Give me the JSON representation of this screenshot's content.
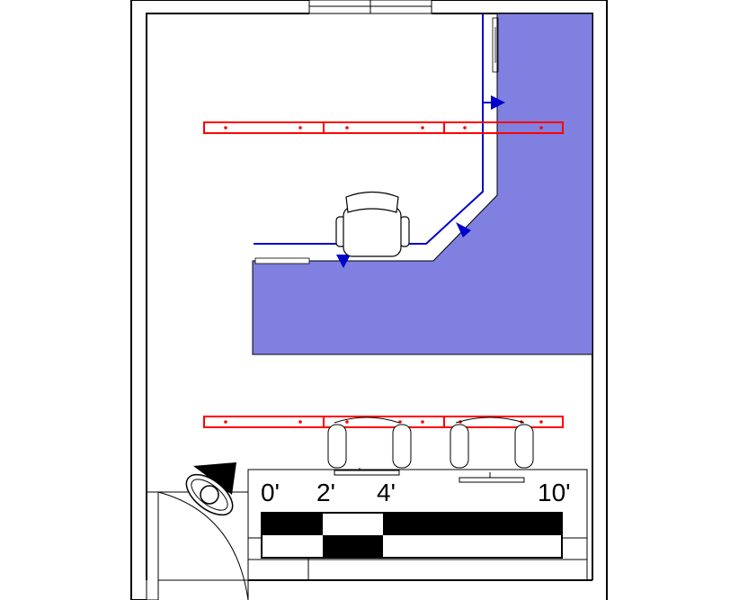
{
  "scale_bar": {
    "labels": [
      "0'",
      "2'",
      "4'",
      "10'"
    ]
  },
  "colors": {
    "desk_fill": "#8080e0",
    "light_track": "#ff0000",
    "path_line": "#0000cc",
    "walls": "#000000",
    "background": "#ffffff"
  },
  "icons": [
    "office-chair-icon",
    "task-chair-icon",
    "camera-icon",
    "door-swing-icon",
    "window-icon"
  ]
}
